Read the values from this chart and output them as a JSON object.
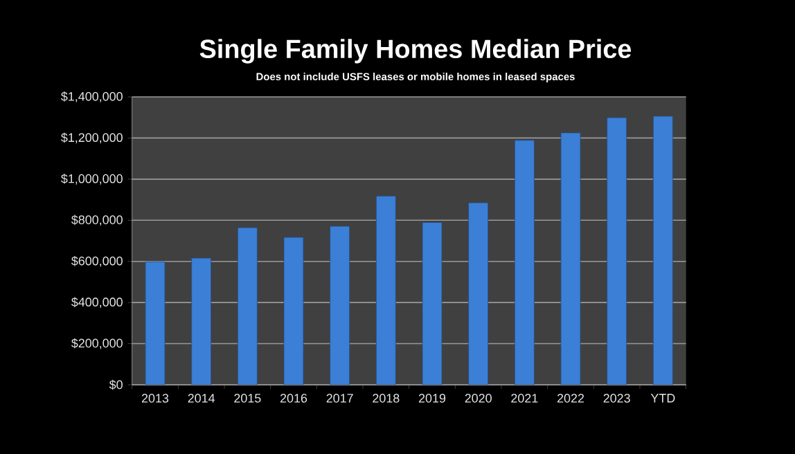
{
  "chart_data": {
    "type": "bar",
    "title": "Single Family Homes Median Price",
    "subtitle": "Does not include USFS leases or mobile homes in leased spaces",
    "categories": [
      "2013",
      "2014",
      "2015",
      "2016",
      "2017",
      "2018",
      "2019",
      "2020",
      "2021",
      "2022",
      "2023",
      "YTD"
    ],
    "values": [
      598000,
      616000,
      764000,
      717000,
      771000,
      918000,
      789000,
      885000,
      1189000,
      1225000,
      1299000,
      1306000
    ],
    "color": "#3c7fd6",
    "ylim": [
      0,
      1400000
    ],
    "yticks": [
      {
        "value": 0,
        "label": "$0"
      },
      {
        "value": 200000,
        "label": "$200,000"
      },
      {
        "value": 400000,
        "label": "$400,000"
      },
      {
        "value": 600000,
        "label": "$600,000"
      },
      {
        "value": 800000,
        "label": "$800,000"
      },
      {
        "value": 1000000,
        "label": "$1,000,000"
      },
      {
        "value": 1200000,
        "label": "$1,200,000"
      },
      {
        "value": 1400000,
        "label": "$1,400,000"
      }
    ],
    "grid": "y"
  }
}
